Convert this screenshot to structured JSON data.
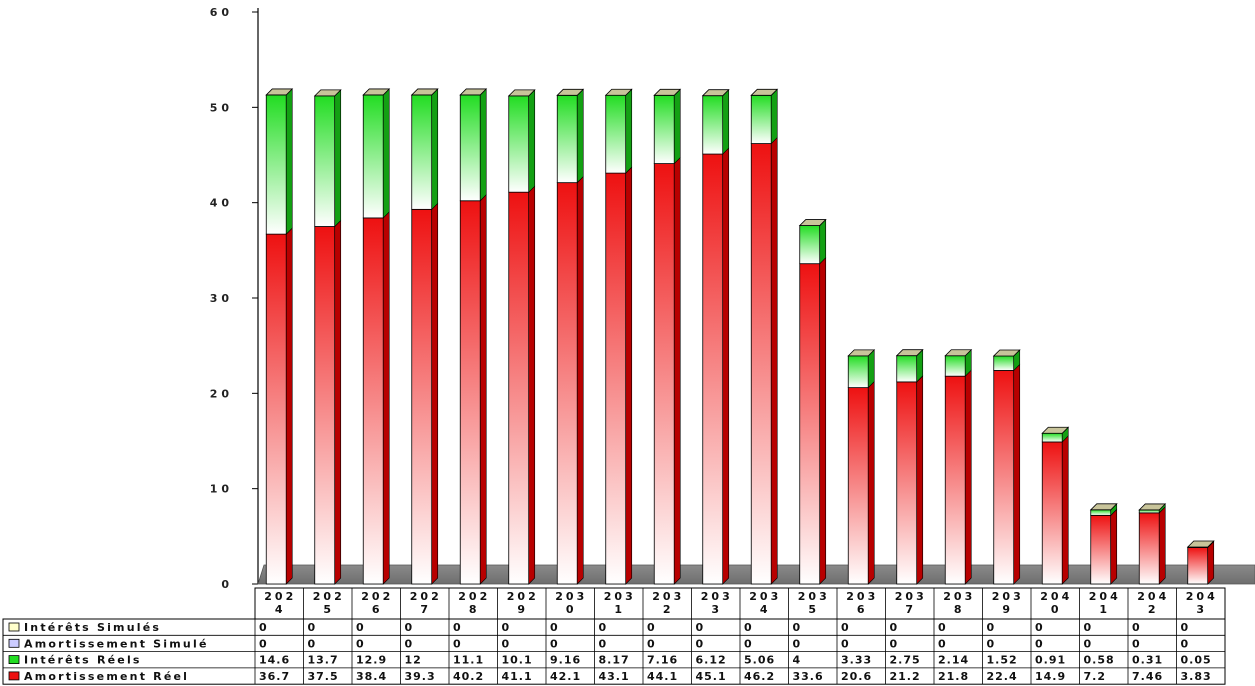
{
  "chart_data": {
    "type": "bar",
    "stacked": true,
    "ylim": [
      0,
      60
    ],
    "yticks": [
      "0",
      "10",
      "20",
      "30",
      "40",
      "50",
      "60"
    ],
    "categories": [
      [
        "202",
        "4"
      ],
      [
        "202",
        "5"
      ],
      [
        "202",
        "6"
      ],
      [
        "202",
        "7"
      ],
      [
        "202",
        "8"
      ],
      [
        "202",
        "9"
      ],
      [
        "203",
        "0"
      ],
      [
        "203",
        "1"
      ],
      [
        "203",
        "2"
      ],
      [
        "203",
        "3"
      ],
      [
        "203",
        "4"
      ],
      [
        "203",
        "5"
      ],
      [
        "203",
        "6"
      ],
      [
        "203",
        "7"
      ],
      [
        "203",
        "8"
      ],
      [
        "203",
        "9"
      ],
      [
        "204",
        "0"
      ],
      [
        "204",
        "1"
      ],
      [
        "204",
        "2"
      ],
      [
        "204",
        "3"
      ]
    ],
    "series": [
      {
        "name": "Intérêts Simulés",
        "color": "#ffffcc",
        "values": [
          0,
          0,
          0,
          0,
          0,
          0,
          0,
          0,
          0,
          0,
          0,
          0,
          0,
          0,
          0,
          0,
          0,
          0,
          0,
          0
        ],
        "labels": [
          "0",
          "0",
          "0",
          "0",
          "0",
          "0",
          "0",
          "0",
          "0",
          "0",
          "0",
          "0",
          "0",
          "0",
          "0",
          "0",
          "0",
          "0",
          "0",
          "0"
        ]
      },
      {
        "name": "Amortissement Simulé",
        "color": "#ccccff",
        "values": [
          0,
          0,
          0,
          0,
          0,
          0,
          0,
          0,
          0,
          0,
          0,
          0,
          0,
          0,
          0,
          0,
          0,
          0,
          0,
          0
        ],
        "labels": [
          "0",
          "0",
          "0",
          "0",
          "0",
          "0",
          "0",
          "0",
          "0",
          "0",
          "0",
          "0",
          "0",
          "0",
          "0",
          "0",
          "0",
          "0",
          "0",
          "0"
        ]
      },
      {
        "name": "Intérêts Réels",
        "color": "#22dd22",
        "values": [
          14.6,
          13.7,
          12.9,
          12,
          11.1,
          10.1,
          9.16,
          8.17,
          7.16,
          6.12,
          5.06,
          4,
          3.33,
          2.75,
          2.14,
          1.52,
          0.91,
          0.58,
          0.31,
          0.05
        ],
        "labels": [
          "14.6",
          "13.7",
          "12.9",
          "12",
          "11.1",
          "10.1",
          "9.16",
          "8.17",
          "7.16",
          "6.12",
          "5.06",
          "4",
          "3.33",
          "2.75",
          "2.14",
          "1.52",
          "0.91",
          "0.58",
          "0.31",
          "0.05"
        ]
      },
      {
        "name": "Amortissement Réel",
        "color": "#ee1111",
        "values": [
          36.7,
          37.5,
          38.4,
          39.3,
          40.2,
          41.1,
          42.1,
          43.1,
          44.1,
          45.1,
          46.2,
          33.6,
          20.6,
          21.2,
          21.8,
          22.4,
          14.9,
          7.2,
          7.46,
          3.83
        ],
        "labels": [
          "36.7",
          "37.5",
          "38.4",
          "39.3",
          "40.2",
          "41.1",
          "42.1",
          "43.1",
          "44.1",
          "45.1",
          "46.2",
          "33.6",
          "20.6",
          "21.2",
          "21.8",
          "22.4",
          "14.9",
          "7.2",
          "7.46",
          "3.83"
        ]
      }
    ],
    "stack_order": [
      "Amortissement Réel",
      "Intérêts Réels",
      "Amortissement Simulé",
      "Intérêts Simulés"
    ],
    "legend_position": "data-table-left",
    "grid": false,
    "title": "",
    "xlabel": "",
    "ylabel": ""
  }
}
